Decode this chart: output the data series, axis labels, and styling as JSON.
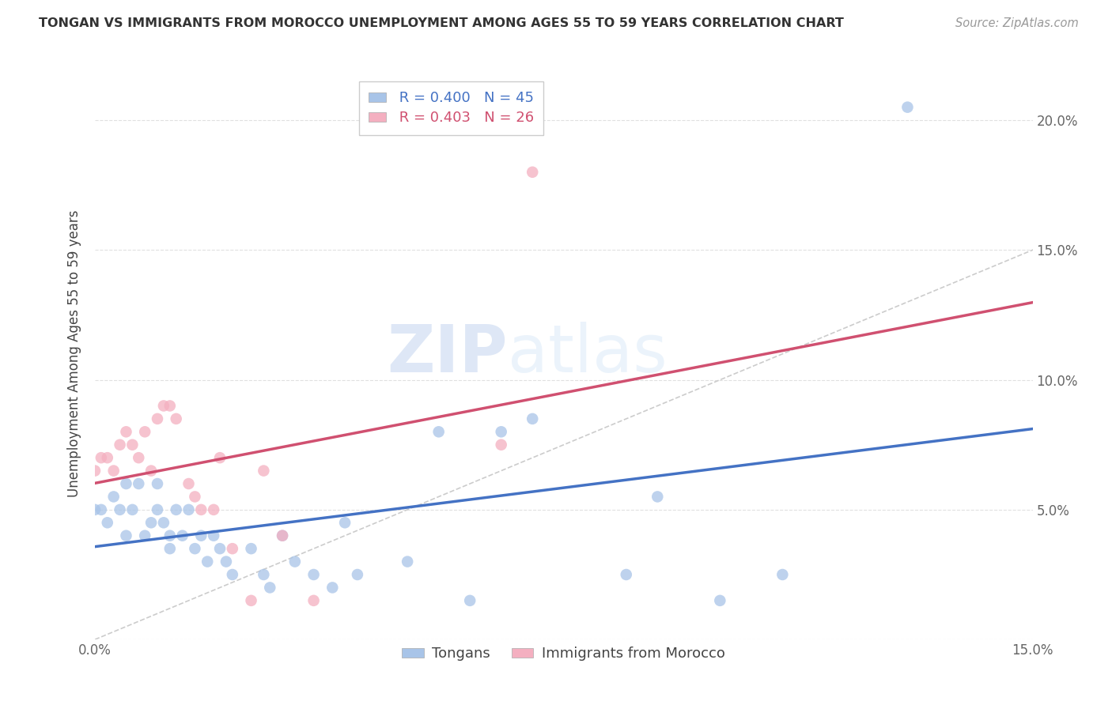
{
  "title": "TONGAN VS IMMIGRANTS FROM MOROCCO UNEMPLOYMENT AMONG AGES 55 TO 59 YEARS CORRELATION CHART",
  "source": "Source: ZipAtlas.com",
  "ylabel": "Unemployment Among Ages 55 to 59 years",
  "xlim": [
    0.0,
    0.15
  ],
  "ylim": [
    0.0,
    0.22
  ],
  "legend1_label": "Tongans",
  "legend2_label": "Immigrants from Morocco",
  "R1": 0.4,
  "N1": 45,
  "R2": 0.403,
  "N2": 26,
  "color_blue": "#a8c4e8",
  "color_pink": "#f4afc0",
  "color_blue_line": "#4472c4",
  "color_pink_line": "#d05070",
  "color_diagonal": "#cccccc",
  "tongans_x": [
    0.0,
    0.001,
    0.002,
    0.003,
    0.004,
    0.005,
    0.005,
    0.006,
    0.007,
    0.008,
    0.009,
    0.01,
    0.01,
    0.011,
    0.012,
    0.012,
    0.013,
    0.014,
    0.015,
    0.016,
    0.017,
    0.018,
    0.019,
    0.02,
    0.021,
    0.022,
    0.025,
    0.027,
    0.028,
    0.03,
    0.032,
    0.035,
    0.038,
    0.04,
    0.042,
    0.05,
    0.055,
    0.06,
    0.065,
    0.07,
    0.085,
    0.09,
    0.1,
    0.11,
    0.13
  ],
  "tongans_y": [
    0.05,
    0.05,
    0.045,
    0.055,
    0.05,
    0.06,
    0.04,
    0.05,
    0.06,
    0.04,
    0.045,
    0.06,
    0.05,
    0.045,
    0.04,
    0.035,
    0.05,
    0.04,
    0.05,
    0.035,
    0.04,
    0.03,
    0.04,
    0.035,
    0.03,
    0.025,
    0.035,
    0.025,
    0.02,
    0.04,
    0.03,
    0.025,
    0.02,
    0.045,
    0.025,
    0.03,
    0.08,
    0.015,
    0.08,
    0.085,
    0.025,
    0.055,
    0.015,
    0.025,
    0.205
  ],
  "morocco_x": [
    0.0,
    0.001,
    0.002,
    0.003,
    0.004,
    0.005,
    0.006,
    0.007,
    0.008,
    0.009,
    0.01,
    0.011,
    0.012,
    0.013,
    0.015,
    0.016,
    0.017,
    0.019,
    0.02,
    0.022,
    0.025,
    0.027,
    0.03,
    0.035,
    0.065,
    0.07
  ],
  "morocco_y": [
    0.065,
    0.07,
    0.07,
    0.065,
    0.075,
    0.08,
    0.075,
    0.07,
    0.08,
    0.065,
    0.085,
    0.09,
    0.09,
    0.085,
    0.06,
    0.055,
    0.05,
    0.05,
    0.07,
    0.035,
    0.015,
    0.065,
    0.04,
    0.015,
    0.075,
    0.18
  ],
  "watermark_zip": "ZIP",
  "watermark_atlas": "atlas",
  "background_color": "#ffffff",
  "grid_color": "#e0e0e0"
}
